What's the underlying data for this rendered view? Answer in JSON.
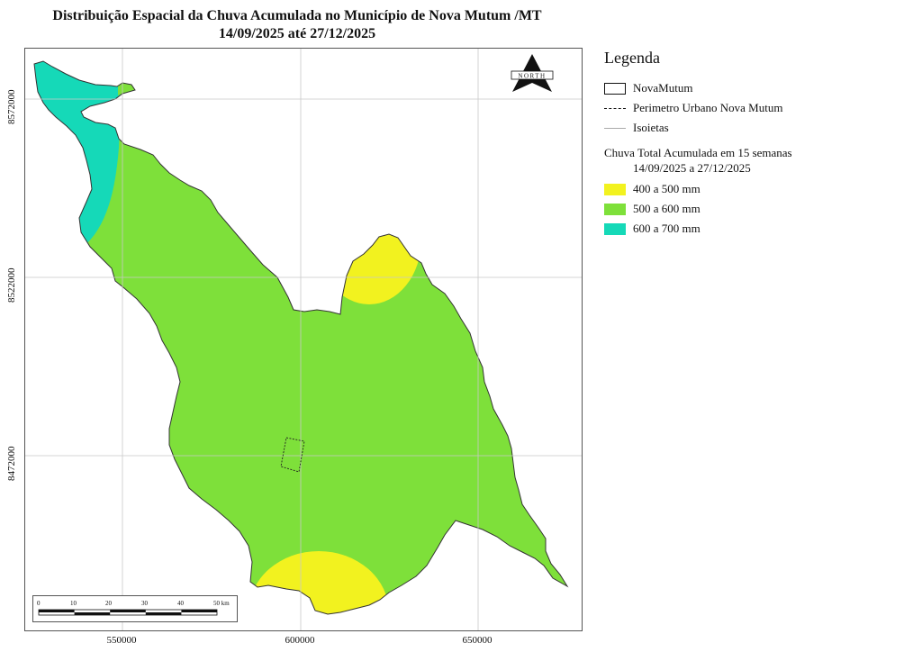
{
  "title_line1": "Distribuição Espacial da Chuva Acumulada no Município de Nova Mutum /MT",
  "title_line2": "14/09/2025 até 27/12/2025",
  "axes": {
    "x_ticks": [
      "550000",
      "600000",
      "650000"
    ],
    "y_ticks": [
      "8572000",
      "8522000",
      "8472000"
    ]
  },
  "north_arrow": {
    "label": "NORTH",
    "icon": "north-arrow-icon"
  },
  "scale_bar": {
    "labels": [
      "0",
      "10",
      "20",
      "30",
      "40",
      "50 km"
    ]
  },
  "legend": {
    "title": "Legenda",
    "layers": [
      {
        "label": "NovaMutum",
        "symbol": "polygon-outline"
      },
      {
        "label": "Perimetro Urbano Nova Mutum",
        "symbol": "dashed-line"
      },
      {
        "label": "Isoietas",
        "symbol": "gray-line"
      }
    ],
    "category_title": "Chuva Total Acumulada em 15 semanas",
    "category_subtitle": "14/09/2025 a 27/12/2025",
    "classes": [
      {
        "label": "400 a 500 mm",
        "color": "#f2f21f"
      },
      {
        "label": "500 a 600 mm",
        "color": "#7ee03a"
      },
      {
        "label": "600 a 700 mm",
        "color": "#15d9b8"
      }
    ]
  },
  "colors": {
    "class_400_500": "#f2f21f",
    "class_500_600": "#7ee03a",
    "class_600_700": "#15d9b8",
    "grid": "#c8c8c8",
    "outline": "#333333"
  }
}
